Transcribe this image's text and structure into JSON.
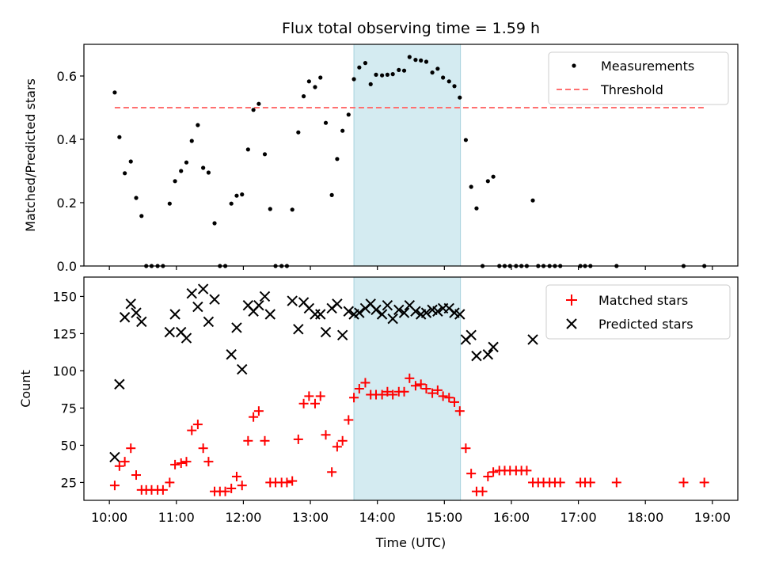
{
  "chart_data": {
    "title": "Flux total observing time = 1.59 h",
    "xlabel": "Time (UTC)",
    "x_ticks": [
      "10:00",
      "11:00",
      "12:00",
      "13:00",
      "14:00",
      "15:00",
      "16:00",
      "17:00",
      "18:00",
      "19:00"
    ],
    "x_range_hours": [
      9.62,
      19.38
    ],
    "shaded_interval_hours": [
      13.65,
      15.24
    ],
    "shade_color": "#d4ebf1",
    "top": {
      "type": "scatter",
      "ylabel": "Matched/Predicted stars",
      "ylim": [
        0,
        0.7
      ],
      "y_ticks": [
        "0.0",
        "0.2",
        "0.4",
        "0.6"
      ],
      "threshold": 0.5,
      "threshold_range_hours": [
        10.08,
        18.9
      ],
      "legend": [
        "Measurements",
        "Threshold"
      ],
      "legend_placement": "top-right",
      "measurements": [
        [
          10.08,
          0.548
        ],
        [
          10.15,
          0.407
        ],
        [
          10.23,
          0.293
        ],
        [
          10.32,
          0.33
        ],
        [
          10.4,
          0.215
        ],
        [
          10.48,
          0.158
        ],
        [
          10.55,
          0
        ],
        [
          10.63,
          0
        ],
        [
          10.72,
          0
        ],
        [
          10.8,
          0
        ],
        [
          10.9,
          0.197
        ],
        [
          10.98,
          0.268
        ],
        [
          11.07,
          0.3
        ],
        [
          11.15,
          0.327
        ],
        [
          11.23,
          0.395
        ],
        [
          11.32,
          0.445
        ],
        [
          11.4,
          0.31
        ],
        [
          11.48,
          0.295
        ],
        [
          11.57,
          0.135
        ],
        [
          11.65,
          0
        ],
        [
          11.73,
          0
        ],
        [
          11.82,
          0.197
        ],
        [
          11.9,
          0.222
        ],
        [
          11.98,
          0.226
        ],
        [
          12.07,
          0.368
        ],
        [
          12.15,
          0.493
        ],
        [
          12.23,
          0.512
        ],
        [
          12.32,
          0.353
        ],
        [
          12.4,
          0.18
        ],
        [
          12.48,
          0
        ],
        [
          12.57,
          0
        ],
        [
          12.65,
          0
        ],
        [
          12.73,
          0.178
        ],
        [
          12.82,
          0.422
        ],
        [
          12.9,
          0.536
        ],
        [
          12.98,
          0.583
        ],
        [
          13.07,
          0.565
        ],
        [
          13.15,
          0.595
        ],
        [
          13.23,
          0.452
        ],
        [
          13.32,
          0.224
        ],
        [
          13.4,
          0.338
        ],
        [
          13.48,
          0.427
        ],
        [
          13.57,
          0.478
        ],
        [
          13.65,
          0.59
        ],
        [
          13.73,
          0.627
        ],
        [
          13.82,
          0.641
        ],
        [
          13.9,
          0.574
        ],
        [
          13.98,
          0.604
        ],
        [
          14.07,
          0.602
        ],
        [
          14.15,
          0.604
        ],
        [
          14.23,
          0.606
        ],
        [
          14.32,
          0.619
        ],
        [
          14.4,
          0.617
        ],
        [
          14.48,
          0.66
        ],
        [
          14.57,
          0.651
        ],
        [
          14.65,
          0.649
        ],
        [
          14.73,
          0.645
        ],
        [
          14.82,
          0.611
        ],
        [
          14.9,
          0.623
        ],
        [
          14.98,
          0.595
        ],
        [
          15.07,
          0.583
        ],
        [
          15.15,
          0.568
        ],
        [
          15.23,
          0.532
        ],
        [
          15.32,
          0.398
        ],
        [
          15.4,
          0.25
        ],
        [
          15.48,
          0.182
        ],
        [
          15.57,
          0
        ],
        [
          15.65,
          0.268
        ],
        [
          15.73,
          0.282
        ],
        [
          15.82,
          0
        ],
        [
          15.9,
          0
        ],
        [
          15.98,
          0
        ],
        [
          16.07,
          0
        ],
        [
          16.15,
          0
        ],
        [
          16.23,
          0
        ],
        [
          16.32,
          0.207
        ],
        [
          16.4,
          0
        ],
        [
          16.48,
          0
        ],
        [
          16.57,
          0
        ],
        [
          16.65,
          0
        ],
        [
          16.73,
          0
        ],
        [
          17.03,
          0
        ],
        [
          17.1,
          0
        ],
        [
          17.18,
          0
        ],
        [
          17.57,
          0
        ],
        [
          18.57,
          0
        ],
        [
          18.88,
          0
        ]
      ]
    },
    "bottom": {
      "type": "scatter",
      "ylabel": "Count",
      "ylim": [
        13,
        163
      ],
      "y_ticks": [
        "25",
        "50",
        "75",
        "100",
        "125",
        "150"
      ],
      "legend": [
        "Matched stars",
        "Predicted stars"
      ],
      "legend_placement": "top-right",
      "matched": [
        [
          10.08,
          23
        ],
        [
          10.15,
          36
        ],
        [
          10.23,
          39
        ],
        [
          10.32,
          48
        ],
        [
          10.4,
          30
        ],
        [
          10.48,
          20
        ],
        [
          10.55,
          20
        ],
        [
          10.63,
          20
        ],
        [
          10.72,
          20
        ],
        [
          10.8,
          20
        ],
        [
          10.9,
          25
        ],
        [
          10.98,
          37
        ],
        [
          11.07,
          38
        ],
        [
          11.15,
          39
        ],
        [
          11.23,
          60
        ],
        [
          11.32,
          64
        ],
        [
          11.4,
          48
        ],
        [
          11.48,
          39
        ],
        [
          11.57,
          19
        ],
        [
          11.65,
          19
        ],
        [
          11.73,
          19
        ],
        [
          11.82,
          21
        ],
        [
          11.9,
          29
        ],
        [
          11.98,
          23
        ],
        [
          12.07,
          53
        ],
        [
          12.15,
          69
        ],
        [
          12.23,
          73
        ],
        [
          12.32,
          53
        ],
        [
          12.4,
          25
        ],
        [
          12.48,
          25
        ],
        [
          12.57,
          25
        ],
        [
          12.65,
          25
        ],
        [
          12.73,
          26
        ],
        [
          12.82,
          54
        ],
        [
          12.9,
          78
        ],
        [
          12.98,
          83
        ],
        [
          13.07,
          78
        ],
        [
          13.15,
          83
        ],
        [
          13.23,
          57
        ],
        [
          13.32,
          32
        ],
        [
          13.4,
          49
        ],
        [
          13.48,
          53
        ],
        [
          13.57,
          67
        ],
        [
          13.65,
          82
        ],
        [
          13.73,
          88
        ],
        [
          13.82,
          92
        ],
        [
          13.9,
          84
        ],
        [
          13.98,
          84
        ],
        [
          14.07,
          84
        ],
        [
          14.15,
          86
        ],
        [
          14.23,
          84
        ],
        [
          14.32,
          86
        ],
        [
          14.4,
          86
        ],
        [
          14.48,
          95
        ],
        [
          14.57,
          90
        ],
        [
          14.65,
          91
        ],
        [
          14.73,
          88
        ],
        [
          14.82,
          85
        ],
        [
          14.9,
          87
        ],
        [
          14.98,
          83
        ],
        [
          15.07,
          82
        ],
        [
          15.15,
          79
        ],
        [
          15.23,
          73
        ],
        [
          15.32,
          48
        ],
        [
          15.4,
          31
        ],
        [
          15.48,
          19
        ],
        [
          15.57,
          19
        ],
        [
          15.65,
          29
        ],
        [
          15.73,
          32
        ],
        [
          15.82,
          33
        ],
        [
          15.9,
          33
        ],
        [
          15.98,
          33
        ],
        [
          16.07,
          33
        ],
        [
          16.15,
          33
        ],
        [
          16.23,
          33
        ],
        [
          16.32,
          25
        ],
        [
          16.4,
          25
        ],
        [
          16.48,
          25
        ],
        [
          16.57,
          25
        ],
        [
          16.65,
          25
        ],
        [
          16.73,
          25
        ],
        [
          17.03,
          25
        ],
        [
          17.1,
          25
        ],
        [
          17.18,
          25
        ],
        [
          17.57,
          25
        ],
        [
          18.57,
          25
        ],
        [
          18.88,
          25
        ]
      ],
      "predicted": [
        [
          10.08,
          42
        ],
        [
          10.15,
          91
        ],
        [
          10.23,
          136
        ],
        [
          10.32,
          145
        ],
        [
          10.4,
          139
        ],
        [
          10.48,
          133
        ],
        [
          10.9,
          126
        ],
        [
          10.98,
          138
        ],
        [
          11.07,
          126
        ],
        [
          11.15,
          122
        ],
        [
          11.23,
          152
        ],
        [
          11.32,
          143
        ],
        [
          11.4,
          155
        ],
        [
          11.48,
          133
        ],
        [
          11.57,
          148
        ],
        [
          11.82,
          111
        ],
        [
          11.9,
          129
        ],
        [
          11.98,
          101
        ],
        [
          12.07,
          144
        ],
        [
          12.15,
          140
        ],
        [
          12.23,
          144
        ],
        [
          12.32,
          150
        ],
        [
          12.4,
          138
        ],
        [
          12.73,
          147
        ],
        [
          12.82,
          128
        ],
        [
          12.9,
          146
        ],
        [
          12.98,
          142
        ],
        [
          13.07,
          138
        ],
        [
          13.15,
          138
        ],
        [
          13.23,
          126
        ],
        [
          13.32,
          142
        ],
        [
          13.4,
          145
        ],
        [
          13.48,
          124
        ],
        [
          13.57,
          140
        ],
        [
          13.65,
          138
        ],
        [
          13.73,
          139
        ],
        [
          13.82,
          142
        ],
        [
          13.9,
          145
        ],
        [
          13.98,
          141
        ],
        [
          14.07,
          138
        ],
        [
          14.15,
          144
        ],
        [
          14.23,
          135
        ],
        [
          14.32,
          141
        ],
        [
          14.4,
          139
        ],
        [
          14.48,
          144
        ],
        [
          14.57,
          140
        ],
        [
          14.65,
          138
        ],
        [
          14.73,
          139
        ],
        [
          14.82,
          141
        ],
        [
          14.9,
          140
        ],
        [
          14.98,
          142
        ],
        [
          15.07,
          142
        ],
        [
          15.15,
          139
        ],
        [
          15.23,
          138
        ],
        [
          15.32,
          121
        ],
        [
          15.4,
          124
        ],
        [
          15.48,
          110
        ],
        [
          15.65,
          111
        ],
        [
          15.73,
          116
        ],
        [
          16.32,
          121
        ]
      ]
    }
  }
}
